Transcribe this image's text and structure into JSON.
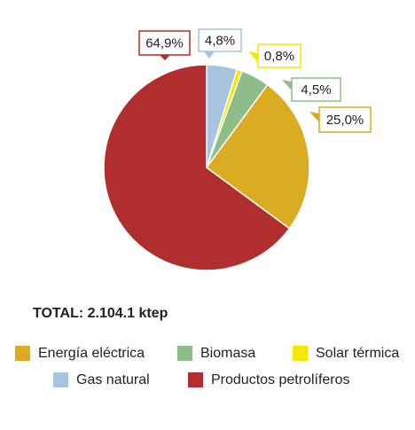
{
  "chart_data": {
    "type": "pie",
    "title": "TOTAL: 2.104.1 ktep",
    "categories": [
      "Gas natural",
      "Solar térmica",
      "Biomasa",
      "Energía eléctrica",
      "Productos petrolíferos"
    ],
    "values": [
      4.8,
      0.8,
      4.5,
      25.0,
      64.9
    ],
    "value_labels": [
      "4,8%",
      "0,8%",
      "4,5%",
      "25,0%",
      "64,9%"
    ],
    "colors": [
      "#a9c4de",
      "#f5e800",
      "#8ebd8a",
      "#dbab22",
      "#b02e2e"
    ]
  }
}
